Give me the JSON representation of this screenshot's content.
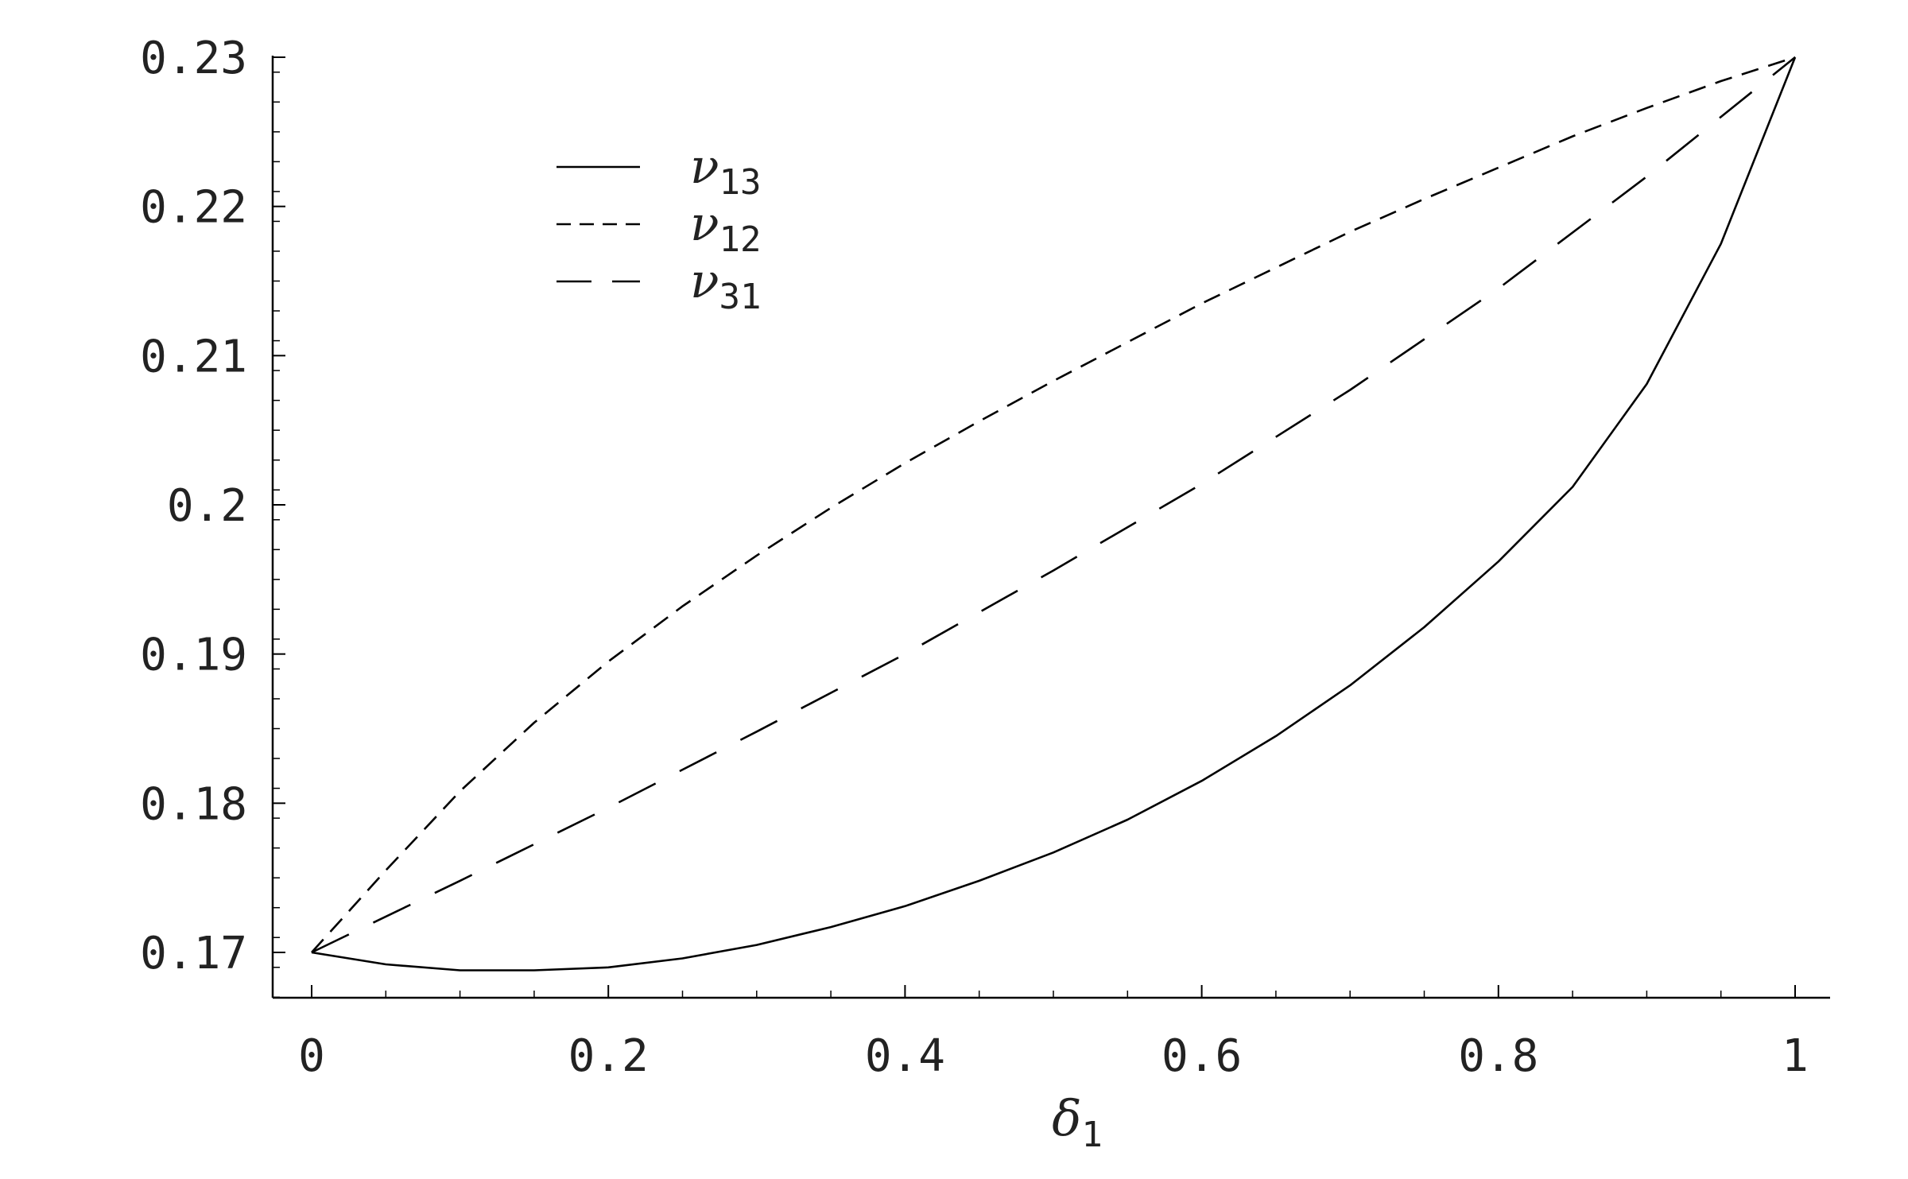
{
  "chart_data": {
    "type": "line",
    "xlabel": {
      "symbol": "δ",
      "sub": "1"
    },
    "ylabel": "",
    "title": "",
    "xlim": [
      0,
      1
    ],
    "ylim": [
      0.167,
      0.23
    ],
    "x_ticks": [
      {
        "value": 0,
        "label": "0"
      },
      {
        "value": 0.2,
        "label": "0.2"
      },
      {
        "value": 0.4,
        "label": "0.4"
      },
      {
        "value": 0.6,
        "label": "0.6"
      },
      {
        "value": 0.8,
        "label": "0.8"
      },
      {
        "value": 1,
        "label": "1"
      }
    ],
    "y_ticks": [
      {
        "value": 0.17,
        "label": "0.17"
      },
      {
        "value": 0.18,
        "label": "0.18"
      },
      {
        "value": 0.19,
        "label": "0.19"
      },
      {
        "value": 0.2,
        "label": "0.2"
      },
      {
        "value": 0.21,
        "label": "0.21"
      },
      {
        "value": 0.22,
        "label": "0.22"
      },
      {
        "value": 0.23,
        "label": "0.23"
      }
    ],
    "grid": false,
    "legend_position": "top-left",
    "series": [
      {
        "symbol": "ν",
        "sub": "13",
        "style": "solid",
        "x": [
          0,
          0.05,
          0.1,
          0.15,
          0.2,
          0.25,
          0.3,
          0.35,
          0.4,
          0.45,
          0.5,
          0.55,
          0.6,
          0.65,
          0.7,
          0.75,
          0.8,
          0.85,
          0.9,
          0.95,
          1
        ],
        "y": [
          0.17,
          0.1692,
          0.1688,
          0.1688,
          0.169,
          0.1696,
          0.1705,
          0.1717,
          0.1731,
          0.1748,
          0.1767,
          0.1789,
          0.1815,
          0.1845,
          0.1879,
          0.1918,
          0.1962,
          0.2012,
          0.2081,
          0.2175,
          0.23
        ]
      },
      {
        "symbol": "ν",
        "sub": "12",
        "style": "short-dash",
        "x": [
          0,
          0.05,
          0.1,
          0.15,
          0.2,
          0.25,
          0.3,
          0.35,
          0.4,
          0.45,
          0.5,
          0.55,
          0.6,
          0.65,
          0.7,
          0.75,
          0.8,
          0.85,
          0.9,
          0.95,
          1
        ],
        "y": [
          0.17,
          0.1755,
          0.1808,
          0.1854,
          0.1895,
          0.1932,
          0.1966,
          0.1998,
          0.2028,
          0.2056,
          0.2083,
          0.2109,
          0.2135,
          0.2159,
          0.2183,
          0.2205,
          0.2226,
          0.2247,
          0.2266,
          0.2284,
          0.23
        ]
      },
      {
        "symbol": "ν",
        "sub": "31",
        "style": "long-dash",
        "x": [
          0,
          0.1,
          0.2,
          0.3,
          0.4,
          0.5,
          0.6,
          0.7,
          0.8,
          0.9,
          1
        ],
        "y": [
          0.17,
          0.1748,
          0.1797,
          0.1848,
          0.19,
          0.1956,
          0.2014,
          0.2077,
          0.2145,
          0.222,
          0.23
        ]
      }
    ]
  }
}
